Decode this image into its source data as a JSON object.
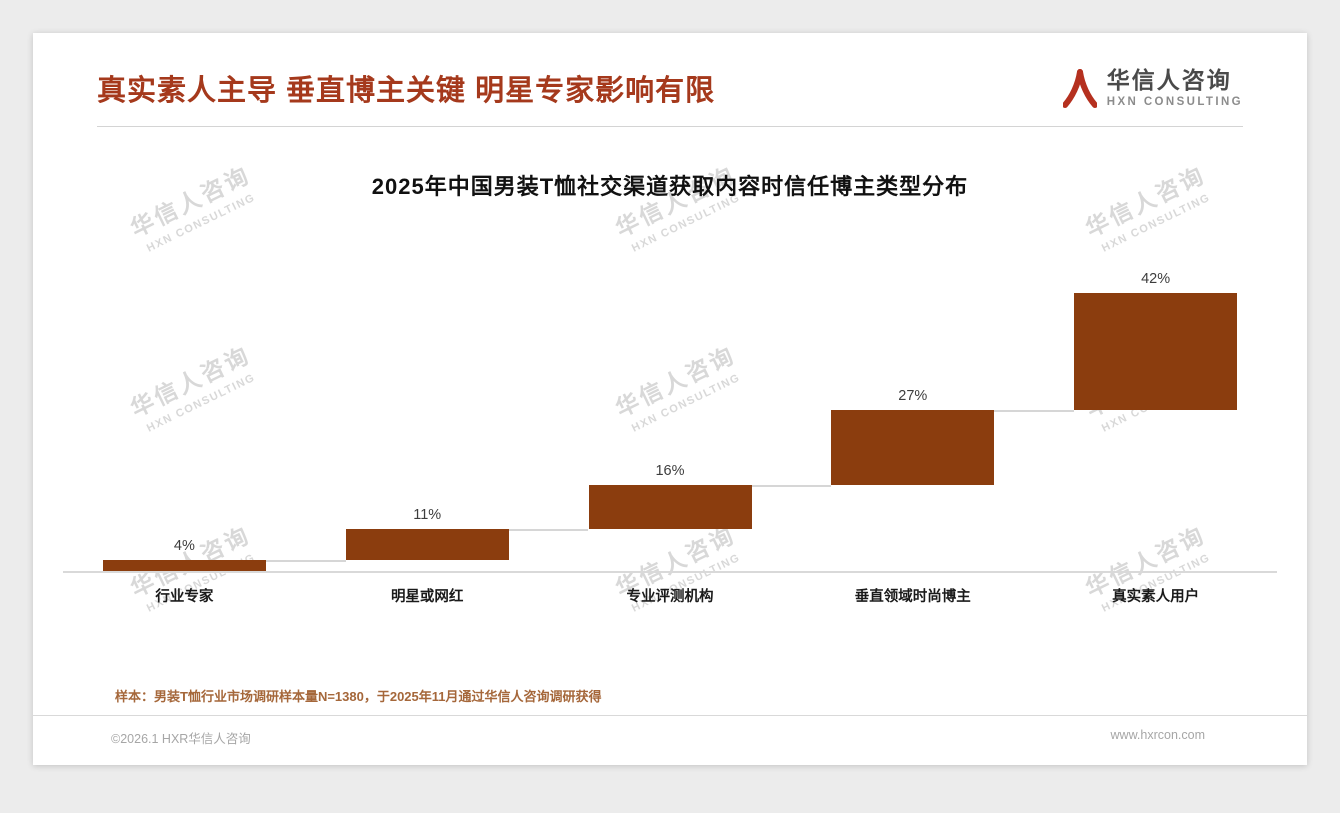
{
  "page": {
    "title": "真实素人主导 垂直博主关键 明星专家影响有限",
    "brand": {
      "name": "华信人咨询",
      "name_en": "HXN CONSULTING"
    },
    "watermark": {
      "line1": "华信人咨询",
      "line2": "HXN CONSULTING"
    },
    "footer": {
      "sample_note": "样本：男装T恤行业市场调研样本量N=1380，于2025年11月通过华信人咨询调研获得",
      "copyright": "©2026.1 HXR华信人咨询",
      "website": "www.hxrcon.com"
    }
  },
  "colors": {
    "heading": "#A5391C",
    "bar": "#8B3D0E",
    "brand_red": "#B5301F",
    "note": "#A5673A",
    "connector": "#D6D6D6",
    "watermark": "#CFCFCF"
  },
  "chart_data": {
    "type": "bar",
    "subtype": "waterfall-step",
    "title": "2025年中国男装T恤社交渠道获取内容时信任博主类型分布",
    "categories": [
      "行业专家",
      "明星或网红",
      "专业评测机构",
      "垂直领域时尚博主",
      "真实素人用户"
    ],
    "values": [
      4,
      11,
      16,
      27,
      42
    ],
    "value_labels": [
      "4%",
      "11%",
      "16%",
      "27%",
      "42%"
    ],
    "unit": "%",
    "total": 100,
    "ylim": [
      0,
      100
    ],
    "grid": false,
    "legend": false,
    "layout_note": "stair-step waterfall: each bar's base sits at the cumulative sum of previous values; light gray connector lines join each bar top to the next bar"
  }
}
